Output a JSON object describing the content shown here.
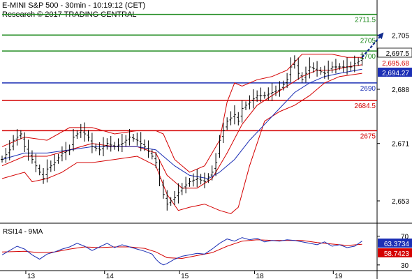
{
  "header": {
    "title": "E-MINI S&P 500 - 30min - 10:19:12 (CET)",
    "subtitle": "Research © 2017 TRADING CENTRAL"
  },
  "chart_data": [
    {
      "type": "candlestick",
      "title": "E-MINI S&P 500 - 30min - 10:19:12 (CET)",
      "ylim": [
        2646,
        2716
      ],
      "y_ticks": [
        2653,
        2671,
        2688,
        2705
      ],
      "x_ticks": [
        "13",
        "14",
        "15",
        "18",
        "19"
      ],
      "x_tick_bars": [
        8,
        29,
        49,
        69,
        90
      ],
      "bar_count": 100,
      "colors": {
        "candle": "#000000",
        "bollinger": "#d40000",
        "ma_blue": "#1c2fb5",
        "resistance": "#1e8a1e",
        "pivot": "#1c2fb5",
        "support": "#d40000",
        "forecast_arrow": "#102a8c",
        "price_label_bg": "#1c2fb5"
      },
      "levels": [
        {
          "label": "2711.5",
          "value": 2711.5,
          "kind": "resistance"
        },
        {
          "label": "2705",
          "value": 2705,
          "kind": "resistance"
        },
        {
          "label": "2700",
          "value": 2700,
          "kind": "resistance"
        },
        {
          "label": "2690",
          "value": 2690,
          "kind": "pivot"
        },
        {
          "label": "2684.5",
          "value": 2684.5,
          "kind": "support"
        },
        {
          "label": "2675",
          "value": 2675,
          "kind": "support"
        }
      ],
      "value_tags": [
        {
          "label": "2,697.5",
          "value": 2697.5,
          "style": "white"
        },
        {
          "label": "2,695.68",
          "value": 2695.68,
          "style": "red-text"
        },
        {
          "label": "2,694.27",
          "value": 2694.27,
          "style": "blue-fill"
        }
      ],
      "forecast": {
        "from_bar": 96,
        "from_value": 2698,
        "to_bar": 101.5,
        "to_value": 2705.5
      },
      "price_path": [
        [
          0,
          2666
        ],
        [
          2,
          2669
        ],
        [
          3,
          2672
        ],
        [
          5,
          2674
        ],
        [
          6,
          2670
        ],
        [
          8,
          2666
        ],
        [
          10,
          2662
        ],
        [
          11,
          2660
        ],
        [
          12,
          2663
        ],
        [
          14,
          2665
        ],
        [
          16,
          2668
        ],
        [
          18,
          2669
        ],
        [
          19,
          2673
        ],
        [
          21,
          2675
        ],
        [
          23,
          2673
        ],
        [
          24,
          2670
        ],
        [
          26,
          2669
        ],
        [
          28,
          2671
        ],
        [
          30,
          2670
        ],
        [
          32,
          2671
        ],
        [
          34,
          2673
        ],
        [
          36,
          2672
        ],
        [
          38,
          2670
        ],
        [
          40,
          2667
        ],
        [
          41,
          2665
        ],
        [
          42,
          2660
        ],
        [
          43,
          2655
        ],
        [
          44,
          2652
        ],
        [
          46,
          2654
        ],
        [
          48,
          2657
        ],
        [
          50,
          2659
        ],
        [
          52,
          2660
        ],
        [
          54,
          2659
        ],
        [
          56,
          2662
        ],
        [
          57,
          2665
        ],
        [
          58,
          2672
        ],
        [
          60,
          2678
        ],
        [
          62,
          2680
        ],
        [
          63,
          2678
        ],
        [
          64,
          2682
        ],
        [
          66,
          2684
        ],
        [
          68,
          2686
        ],
        [
          70,
          2686
        ],
        [
          72,
          2687
        ],
        [
          74,
          2688
        ],
        [
          76,
          2691
        ],
        [
          77,
          2695
        ],
        [
          78,
          2697
        ],
        [
          79,
          2693
        ],
        [
          80,
          2691
        ],
        [
          82,
          2695
        ],
        [
          84,
          2694
        ],
        [
          86,
          2693
        ],
        [
          88,
          2695
        ],
        [
          90,
          2695
        ],
        [
          92,
          2695
        ],
        [
          93,
          2695
        ],
        [
          94,
          2696
        ],
        [
          96,
          2697.5
        ]
      ],
      "ma_blue": [
        [
          0,
          2666
        ],
        [
          6,
          2668
        ],
        [
          12,
          2668
        ],
        [
          18,
          2669
        ],
        [
          24,
          2670
        ],
        [
          30,
          2670
        ],
        [
          36,
          2670
        ],
        [
          41,
          2669
        ],
        [
          46,
          2664
        ],
        [
          50,
          2661
        ],
        [
          55,
          2660
        ],
        [
          58,
          2662
        ],
        [
          62,
          2666
        ],
        [
          66,
          2672
        ],
        [
          70,
          2677
        ],
        [
          74,
          2682
        ],
        [
          78,
          2687
        ],
        [
          82,
          2690
        ],
        [
          86,
          2692
        ],
        [
          90,
          2693
        ],
        [
          96,
          2694.27
        ]
      ],
      "bb_mid": [
        [
          0,
          2664
        ],
        [
          6,
          2667
        ],
        [
          12,
          2667
        ],
        [
          18,
          2669
        ],
        [
          24,
          2671
        ],
        [
          30,
          2670
        ],
        [
          36,
          2670
        ],
        [
          41,
          2668
        ],
        [
          44,
          2661
        ],
        [
          48,
          2657
        ],
        [
          52,
          2657
        ],
        [
          56,
          2660
        ],
        [
          60,
          2668
        ],
        [
          64,
          2677
        ],
        [
          68,
          2683
        ],
        [
          72,
          2686
        ],
        [
          76,
          2689
        ],
        [
          80,
          2692
        ],
        [
          84,
          2694
        ],
        [
          88,
          2694
        ],
        [
          92,
          2695
        ],
        [
          96,
          2695.68
        ]
      ],
      "bb_upper": [
        [
          0,
          2670
        ],
        [
          6,
          2673
        ],
        [
          12,
          2672
        ],
        [
          18,
          2676
        ],
        [
          24,
          2676
        ],
        [
          30,
          2674
        ],
        [
          36,
          2675
        ],
        [
          41,
          2675
        ],
        [
          43,
          2674
        ],
        [
          46,
          2666
        ],
        [
          50,
          2662
        ],
        [
          54,
          2664
        ],
        [
          58,
          2672
        ],
        [
          60,
          2684
        ],
        [
          62,
          2690
        ],
        [
          64,
          2689
        ],
        [
          68,
          2691
        ],
        [
          72,
          2692
        ],
        [
          76,
          2694
        ],
        [
          80,
          2699
        ],
        [
          84,
          2699
        ],
        [
          88,
          2699
        ],
        [
          92,
          2698
        ],
        [
          96,
          2698
        ]
      ],
      "bb_lower": [
        [
          0,
          2660
        ],
        [
          6,
          2662
        ],
        [
          8,
          2659
        ],
        [
          12,
          2660
        ],
        [
          16,
          2662
        ],
        [
          20,
          2665
        ],
        [
          24,
          2665
        ],
        [
          30,
          2666
        ],
        [
          36,
          2667
        ],
        [
          41,
          2664
        ],
        [
          44,
          2655
        ],
        [
          47,
          2650
        ],
        [
          50,
          2651
        ],
        [
          54,
          2652
        ],
        [
          58,
          2650
        ],
        [
          61,
          2649
        ],
        [
          63,
          2651
        ],
        [
          66,
          2664
        ],
        [
          70,
          2678
        ],
        [
          74,
          2681
        ],
        [
          78,
          2683
        ],
        [
          82,
          2686
        ],
        [
          86,
          2690
        ],
        [
          90,
          2692
        ],
        [
          96,
          2693
        ]
      ]
    },
    {
      "type": "line",
      "title": "RSI14 - 9MA",
      "ylim": [
        25,
        85
      ],
      "y_ticks": [
        70,
        30
      ],
      "colors": {
        "rsi": "#1c2fb5",
        "ma": "#d40000"
      },
      "value_tags": [
        {
          "label": "63.3734",
          "value": 63.3734,
          "style": "blue-fill"
        },
        {
          "label": "58.7423",
          "value": 58.7423,
          "style": "red-fill"
        }
      ],
      "rsi": [
        [
          0,
          44
        ],
        [
          2,
          50
        ],
        [
          4,
          56
        ],
        [
          6,
          52
        ],
        [
          8,
          44
        ],
        [
          10,
          38
        ],
        [
          12,
          45
        ],
        [
          14,
          48
        ],
        [
          16,
          52
        ],
        [
          18,
          55
        ],
        [
          20,
          60
        ],
        [
          22,
          56
        ],
        [
          24,
          50
        ],
        [
          26,
          55
        ],
        [
          28,
          60
        ],
        [
          30,
          54
        ],
        [
          32,
          58
        ],
        [
          34,
          55
        ],
        [
          36,
          52
        ],
        [
          38,
          49
        ],
        [
          40,
          45
        ],
        [
          41,
          38
        ],
        [
          42,
          33
        ],
        [
          43,
          30
        ],
        [
          44,
          32
        ],
        [
          46,
          38
        ],
        [
          48,
          42
        ],
        [
          50,
          44
        ],
        [
          52,
          46
        ],
        [
          54,
          45
        ],
        [
          56,
          52
        ],
        [
          58,
          60
        ],
        [
          60,
          66
        ],
        [
          62,
          63
        ],
        [
          64,
          68
        ],
        [
          66,
          65
        ],
        [
          68,
          67
        ],
        [
          70,
          62
        ],
        [
          72,
          64
        ],
        [
          74,
          63
        ],
        [
          76,
          65
        ],
        [
          78,
          64
        ],
        [
          80,
          62
        ],
        [
          82,
          60
        ],
        [
          84,
          58
        ],
        [
          86,
          62
        ],
        [
          88,
          56
        ],
        [
          90,
          58
        ],
        [
          92,
          54
        ],
        [
          94,
          56
        ],
        [
          96,
          63
        ]
      ],
      "ma": [
        [
          0,
          48
        ],
        [
          6,
          49
        ],
        [
          10,
          47
        ],
        [
          14,
          48
        ],
        [
          18,
          52
        ],
        [
          22,
          55
        ],
        [
          26,
          54
        ],
        [
          30,
          55
        ],
        [
          34,
          55
        ],
        [
          38,
          53
        ],
        [
          41,
          48
        ],
        [
          44,
          40
        ],
        [
          48,
          39
        ],
        [
          52,
          43
        ],
        [
          56,
          47
        ],
        [
          60,
          56
        ],
        [
          64,
          63
        ],
        [
          68,
          65
        ],
        [
          72,
          64
        ],
        [
          76,
          64
        ],
        [
          80,
          64
        ],
        [
          84,
          61
        ],
        [
          88,
          59
        ],
        [
          92,
          57
        ],
        [
          96,
          58.7
        ]
      ]
    }
  ]
}
